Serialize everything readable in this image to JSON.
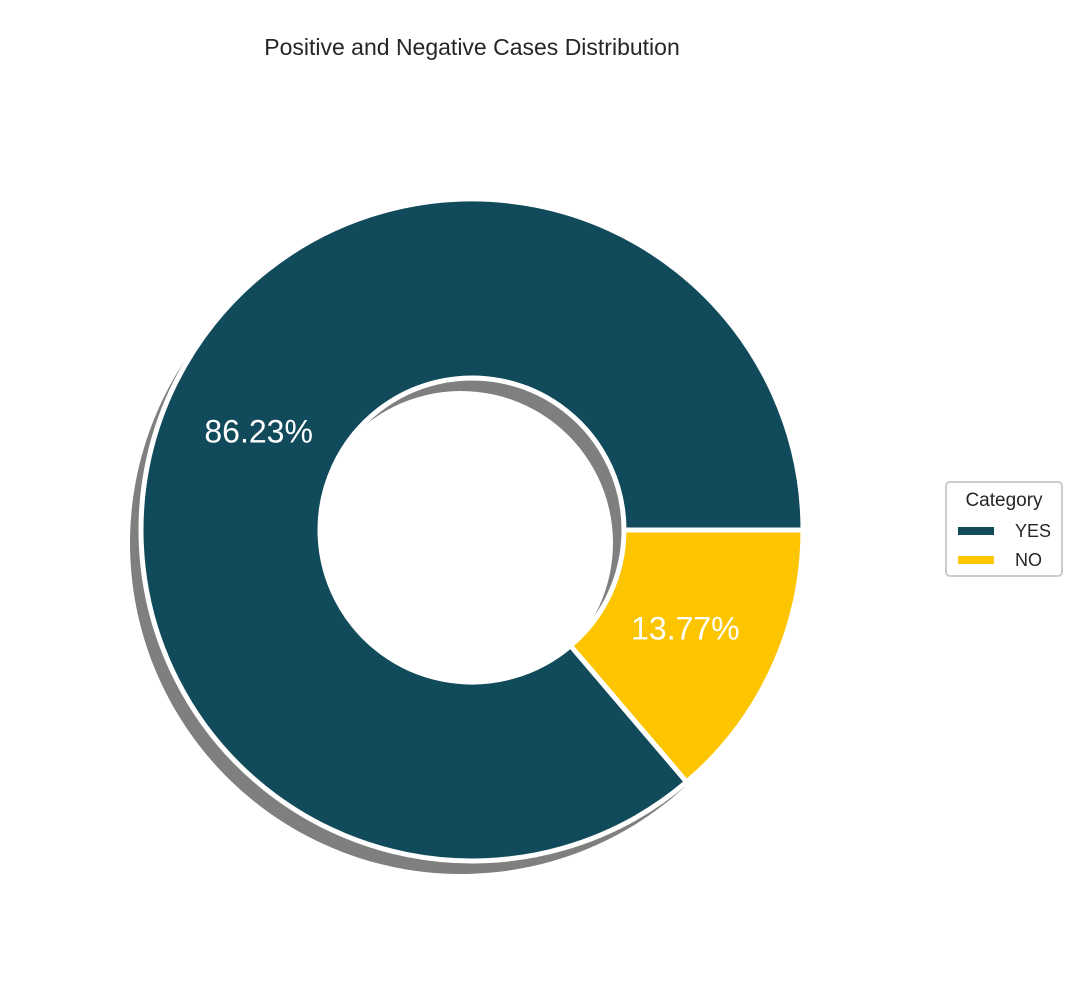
{
  "chart_data": {
    "type": "pie",
    "title": "Positive and Negative Cases Distribution",
    "donut": true,
    "shadow": true,
    "start_angle_deg": 0,
    "direction": "counterclockwise",
    "slices": [
      {
        "label": "YES",
        "value": 86.23,
        "display": "86.23%",
        "color": "#114b5b"
      },
      {
        "label": "NO",
        "value": 13.77,
        "display": "13.77%",
        "color": "#fdc400"
      }
    ],
    "legend": {
      "title": "Category",
      "placement": "right",
      "entries": [
        "YES",
        "NO"
      ]
    }
  }
}
